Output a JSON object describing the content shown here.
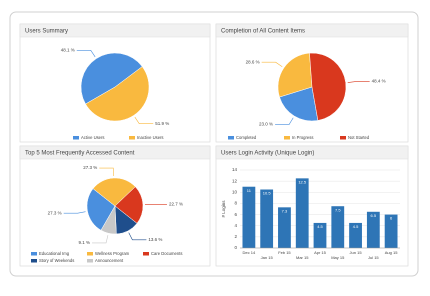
{
  "chart_data": [
    {
      "type": "pie",
      "title": "Users Summary",
      "categories": [
        "Active Users",
        "Inactive Users"
      ],
      "values": [
        48.1,
        51.9
      ],
      "value_labels": [
        "48.1 %",
        "51.9 %"
      ],
      "colors": [
        "#4a8fde",
        "#f9b93f"
      ],
      "start_angle": 150
    },
    {
      "type": "pie",
      "title": "Completion of All Content Items",
      "categories": [
        "Completed",
        "In Progress",
        "Not Started"
      ],
      "values": [
        23.0,
        28.6,
        48.4
      ],
      "value_labels": [
        "23.0 %",
        "28.6 %",
        "48.4 %"
      ],
      "colors": [
        "#4a8fde",
        "#f9b93f",
        "#d9381e"
      ],
      "start_angle": 80
    },
    {
      "type": "pie",
      "title": "Top 5 Most Frequently Accessed Content",
      "categories": [
        "Educational Img",
        "Wellness Program",
        "Care Documents",
        "Story of Weekends",
        "Announcement"
      ],
      "values": [
        27.3,
        27.3,
        22.7,
        13.6,
        9.1
      ],
      "value_labels": [
        "27.3 %",
        "27.3 %",
        "22.7 %",
        "13.6 %",
        "9.1 %"
      ],
      "colors": [
        "#4a8fde",
        "#f9b93f",
        "#d9381e",
        "#1f4e8c",
        "#c8c8c8"
      ],
      "start_angle": 120
    },
    {
      "type": "bar",
      "title": "Users Login Activity (Unique Login)",
      "ylabel": "# Logins",
      "categories": [
        "Dec 14",
        "Jan 15",
        "Feb 15",
        "Mar 15",
        "Apr 15",
        "May 15",
        "Jun 15",
        "Jul 15",
        "Aug 15"
      ],
      "values": [
        11,
        10.5,
        7.3,
        12.5,
        4.5,
        7.5,
        4.5,
        6.5,
        6
      ],
      "color": "#2e75b6",
      "ylim": [
        0,
        14
      ],
      "yticks": [
        0,
        2,
        4,
        6,
        8,
        10,
        12,
        14
      ],
      "grid": true
    }
  ]
}
